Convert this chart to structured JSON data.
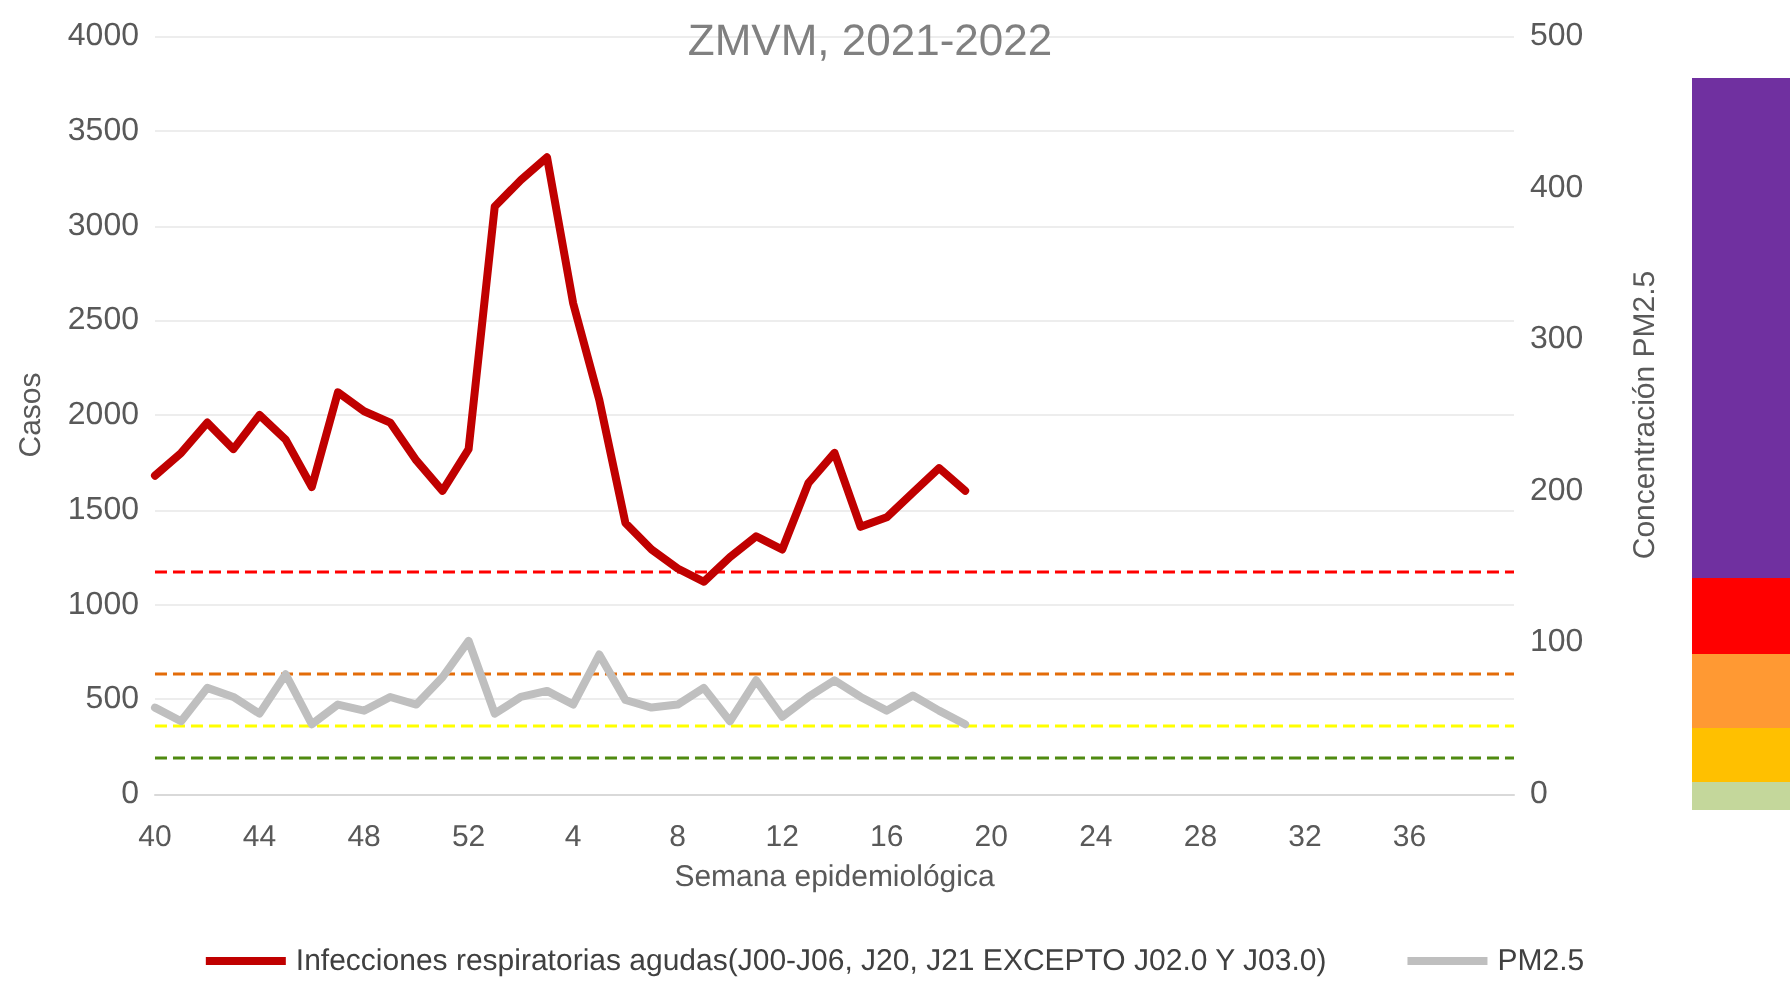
{
  "chart_data": {
    "type": "line",
    "title": "ZMVM, 2021-2022",
    "xlabel": "Semana epidemiológica",
    "ylabel": "Casos",
    "y2label": "Concentración PM2.5",
    "categories": [
      "40",
      null,
      null,
      null,
      "44",
      null,
      null,
      null,
      "48",
      null,
      null,
      null,
      "52",
      null,
      null,
      null,
      "4",
      null,
      null,
      null,
      "8",
      null,
      null,
      null,
      "12",
      null,
      null,
      null,
      "16",
      null,
      null,
      null,
      "20",
      null,
      null,
      null,
      "24",
      null,
      null,
      null,
      "28",
      null,
      null,
      null,
      "32",
      null,
      null,
      null,
      "36",
      null,
      null,
      null,
      null
    ],
    "series": [
      {
        "name": "Infecciones respiratorias agudas(J00-J06, J20, J21 EXCEPTO J02.0 Y J03.0)",
        "color": "#c00000",
        "values": [
          1680,
          1800,
          1960,
          1820,
          2000,
          1870,
          1620,
          2120,
          2020,
          1960,
          1760,
          1600,
          1820,
          3100,
          3240,
          3360,
          2590,
          2080,
          1430,
          1290,
          1190,
          1120,
          1250,
          1360,
          1290,
          1640,
          1800,
          1410,
          1460,
          1590,
          1720,
          1600,
          null,
          null,
          null,
          null,
          null,
          null,
          null,
          null,
          null,
          null,
          null,
          null,
          null,
          null,
          null,
          null,
          null,
          null,
          null,
          null,
          null
        ]
      },
      {
        "name": "PM2.5",
        "color": "#bfbfbf",
        "axis": "y2",
        "values": [
          57,
          48,
          70,
          64,
          53,
          79,
          46,
          59,
          55,
          64,
          59,
          77,
          101,
          53,
          64,
          68,
          59,
          92,
          62,
          57,
          59,
          70,
          48,
          75,
          51,
          64,
          75,
          64,
          55,
          65,
          55,
          46,
          null,
          null,
          null,
          null,
          null,
          null,
          null,
          null,
          null,
          null,
          null,
          null,
          null,
          null,
          null,
          null,
          null,
          null,
          null,
          null,
          null
        ]
      }
    ],
    "ylim": [
      0,
      4000
    ],
    "yticks": [
      0,
      500,
      1000,
      1500,
      2000,
      2500,
      3000,
      3500,
      4000
    ],
    "y2lim": [
      0,
      500
    ],
    "y2ticks": [
      0,
      100,
      200,
      300,
      400,
      500
    ],
    "ref_lines": [
      {
        "axis": "y2",
        "value": 147,
        "label": null,
        "color": "#ff0000",
        "line_style": "dashed"
      },
      {
        "axis": "y2",
        "value": 79,
        "label": null,
        "color": "#e36c09",
        "line_style": "dashed"
      },
      {
        "axis": "y2",
        "value": 45,
        "label": null,
        "color": "#ffff00",
        "line_style": "dashed"
      },
      {
        "axis": "y2",
        "value": 24,
        "label": null,
        "color": "#4f8a10",
        "line_style": "dashed"
      }
    ],
    "grid": "y",
    "legend": "bottom",
    "marker": "none",
    "line_style": "solid"
  }
}
